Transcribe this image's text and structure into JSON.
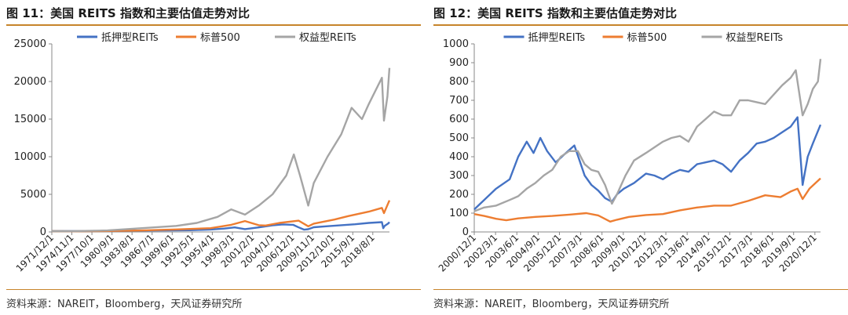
{
  "charts": [
    {
      "title": "图 11：美国 REITS 指数和主要估值走势对比",
      "source": "资料来源：NAREIT，Bloomberg，天风证券研究所",
      "chart_data": {
        "type": "line",
        "legend_position": "top",
        "grid": false,
        "ylim": [
          0,
          25000
        ],
        "yticks": [
          "0",
          "5000",
          "10000",
          "15000",
          "20000",
          "25000"
        ],
        "ytick_values": [
          0,
          5000,
          10000,
          15000,
          20000,
          25000
        ],
        "xlim": [
          1971.92,
          2021.0
        ],
        "xtick_labels": [
          "1971/12/1",
          "1974/11/1",
          "1977/10/1",
          "1980/9/1",
          "1983/8/1",
          "1986/7/1",
          "1989/6/1",
          "1992/5/1",
          "1995/4/1",
          "1998/3/1",
          "2001/2/1",
          "2004/1/1",
          "2006/12/1",
          "2009/11/1",
          "2012/10/1",
          "2015/9/1",
          "2018/8/1"
        ],
        "xtick_values": [
          1971.92,
          1974.83,
          1977.75,
          1980.67,
          1983.58,
          1986.5,
          1989.42,
          1992.33,
          1995.25,
          1998.17,
          2001.08,
          2004.0,
          2006.92,
          2009.83,
          2012.75,
          2015.67,
          2018.58
        ],
        "series": [
          {
            "name": "抵押型REITs",
            "color": "#4472C4",
            "x": [
              1971.92,
              1976,
              1980,
              1984,
              1988,
              1992,
              1995,
              1997,
              1998.5,
              2000,
              2002,
              2004,
              2005.5,
              2007.0,
              2007.8,
              2008.6,
              2009.2,
              2010,
              2012,
              2014,
              2016,
              2018,
              2019.9,
              2020.1,
              2020.3,
              2020.8,
              2021.0
            ],
            "y": [
              120,
              110,
              130,
              180,
              200,
              230,
              320,
              450,
              600,
              380,
              600,
              880,
              1000,
              950,
              600,
              300,
              360,
              620,
              760,
              900,
              1020,
              1200,
              1300,
              500,
              800,
              1100,
              1300
            ]
          },
          {
            "name": "标普500",
            "color": "#ED7D31",
            "x": [
              1971.92,
              1975,
              1980,
              1985,
              1990,
              1995,
              1998,
              2000.0,
              2002,
              2003.0,
              2005,
              2007.8,
              2009.2,
              2010,
              2013,
              2015,
              2018,
              2019.9,
              2020.2,
              2021.0
            ],
            "y": [
              100,
              80,
              130,
              200,
              330,
              500,
              950,
              1450,
              900,
              850,
              1200,
              1500,
              750,
              1100,
              1650,
              2100,
              2700,
              3200,
              2500,
              4200
            ]
          },
          {
            "name": "权益型REITs",
            "color": "#A5A5A5",
            "x": [
              1971.92,
              1975,
              1980,
              1985,
              1990,
              1993,
              1996,
              1998.0,
              2000.0,
              2002,
              2004,
              2006.0,
              2007.1,
              2008.0,
              2009.2,
              2010,
              2012,
              2014,
              2015.5,
              2017.0,
              2018.0,
              2019.9,
              2020.2,
              2020.7,
              2021.0
            ],
            "y": [
              100,
              100,
              200,
              500,
              800,
              1200,
              2000,
              3000,
              2300,
              3500,
              5000,
              7500,
              10300,
              7500,
              3500,
              6500,
              10000,
              13000,
              16500,
              15000,
              17000,
              20500,
              14800,
              18000,
              21800
            ]
          }
        ]
      }
    },
    {
      "title": "图 12：美国 REITS 指数和主要估值走势对比",
      "source": "资料来源：NAREIT，Bloomberg，天风证券研究所",
      "chart_data": {
        "type": "line",
        "legend_position": "top",
        "grid": false,
        "ylim": [
          0,
          1000
        ],
        "yticks": [
          "0",
          "100",
          "200",
          "300",
          "400",
          "500",
          "600",
          "700",
          "800",
          "900",
          "1000"
        ],
        "ytick_values": [
          0,
          100,
          200,
          300,
          400,
          500,
          600,
          700,
          800,
          900,
          1000
        ],
        "xlim": [
          2000.92,
          2021.25
        ],
        "xtick_labels": [
          "2000/12/1",
          "2002/3/1",
          "2003/6/1",
          "2004/9/1",
          "2005/12/1",
          "2007/3/1",
          "2008/6/1",
          "2009/9/1",
          "2010/12/1",
          "2012/3/1",
          "2013/6/1",
          "2014/9/1",
          "2015/12/1",
          "2017/3/1",
          "2018/6/1",
          "2019/9/1",
          "2020/12/1"
        ],
        "xtick_values": [
          2000.92,
          2002.17,
          2003.42,
          2004.67,
          2005.92,
          2007.17,
          2008.42,
          2009.67,
          2010.92,
          2012.17,
          2013.42,
          2014.67,
          2015.92,
          2017.17,
          2018.42,
          2019.67,
          2020.92
        ],
        "series": [
          {
            "name": "抵押型REITs",
            "color": "#4472C4",
            "x": [
              2000.92,
              2001.5,
              2002.2,
              2003.0,
              2003.5,
              2004.0,
              2004.4,
              2004.8,
              2005.2,
              2005.7,
              2006.3,
              2006.8,
              2007.1,
              2007.4,
              2007.8,
              2008.2,
              2008.6,
              2009.0,
              2009.3,
              2009.7,
              2010.3,
              2011.0,
              2011.5,
              2012.0,
              2012.5,
              2013.0,
              2013.5,
              2014.0,
              2014.5,
              2015.0,
              2015.5,
              2016.0,
              2016.5,
              2017.0,
              2017.5,
              2018.0,
              2018.5,
              2019.0,
              2019.5,
              2019.9,
              2020.2,
              2020.5,
              2020.8,
              2021.25
            ],
            "y": [
              120,
              170,
              230,
              280,
              400,
              480,
              420,
              500,
              430,
              370,
              420,
              460,
              380,
              300,
              250,
              220,
              180,
              160,
              200,
              230,
              260,
              310,
              300,
              280,
              310,
              330,
              320,
              360,
              370,
              380,
              360,
              320,
              380,
              420,
              470,
              480,
              500,
              530,
              560,
              610,
              250,
              400,
              470,
              570
            ]
          },
          {
            "name": "标普500",
            "color": "#ED7D31",
            "x": [
              2000.92,
              2001.5,
              2002.2,
              2002.8,
              2003.5,
              2004.5,
              2005.5,
              2006.5,
              2007.5,
              2008.2,
              2008.9,
              2009.3,
              2010,
              2011,
              2012,
              2013,
              2014,
              2015,
              2016,
              2017,
              2018,
              2018.9,
              2019.5,
              2019.9,
              2020.2,
              2020.6,
              2021.25
            ],
            "y": [
              95,
              85,
              70,
              62,
              72,
              80,
              85,
              92,
              100,
              88,
              55,
              65,
              80,
              90,
              95,
              115,
              130,
              140,
              140,
              165,
              195,
              185,
              215,
              230,
              175,
              230,
              285
            ]
          },
          {
            "name": "权益型REITs",
            "color": "#A5A5A5",
            "x": [
              2000.92,
              2001.5,
              2002.2,
              2003.0,
              2003.5,
              2004.0,
              2004.5,
              2005.0,
              2005.5,
              2006.0,
              2006.5,
              2007.0,
              2007.4,
              2007.8,
              2008.2,
              2008.6,
              2009.0,
              2009.3,
              2009.8,
              2010.3,
              2011.0,
              2011.5,
              2012.0,
              2012.5,
              2013.0,
              2013.5,
              2014.0,
              2014.5,
              2015.0,
              2015.5,
              2016.0,
              2016.5,
              2017.0,
              2017.5,
              2018.0,
              2018.5,
              2019.0,
              2019.5,
              2019.8,
              2020.2,
              2020.5,
              2020.8,
              2021.1,
              2021.25
            ],
            "y": [
              110,
              130,
              140,
              170,
              190,
              230,
              260,
              300,
              330,
              400,
              430,
              430,
              360,
              330,
              320,
              250,
              150,
              200,
              300,
              380,
              420,
              450,
              480,
              500,
              510,
              480,
              560,
              600,
              640,
              620,
              620,
              700,
              700,
              690,
              680,
              730,
              780,
              820,
              860,
              620,
              680,
              760,
              800,
              920
            ]
          }
        ]
      }
    }
  ]
}
